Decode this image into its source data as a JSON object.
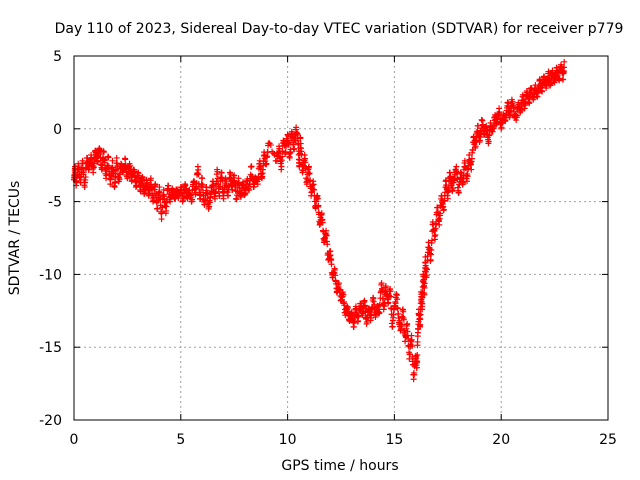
{
  "chart_data": {
    "type": "scatter",
    "title": "Day 110 of 2023, Sidereal Day-to-day VTEC variation (SDTVAR) for receiver p779",
    "xlabel": "GPS time / hours",
    "ylabel": "SDTVAR / TECUs",
    "xlim": [
      0,
      25
    ],
    "ylim": [
      -20,
      5
    ],
    "xticks": [
      0,
      5,
      10,
      15,
      20,
      25
    ],
    "yticks": [
      -20,
      -15,
      -10,
      -5,
      0,
      5
    ],
    "grid": true,
    "marker": "plus",
    "series": [
      {
        "color": "#ff0000",
        "points": [
          [
            0.0,
            -3.5
          ],
          [
            0.05,
            -2.6
          ],
          [
            0.1,
            -3.9
          ],
          [
            0.2,
            -2.4
          ],
          [
            0.3,
            -3.7
          ],
          [
            0.4,
            -2.2
          ],
          [
            0.5,
            -4.0
          ],
          [
            0.6,
            -2.0
          ],
          [
            0.7,
            -2.8
          ],
          [
            0.8,
            -1.8
          ],
          [
            0.9,
            -3.0
          ],
          [
            1.0,
            -1.5
          ],
          [
            1.1,
            -2.2
          ],
          [
            1.2,
            -1.4
          ],
          [
            1.3,
            -2.8
          ],
          [
            1.4,
            -1.6
          ],
          [
            1.5,
            -3.4
          ],
          [
            1.6,
            -1.9
          ],
          [
            1.7,
            -3.8
          ],
          [
            1.8,
            -2.2
          ],
          [
            1.9,
            -4.0
          ],
          [
            2.0,
            -2.0
          ],
          [
            2.1,
            -3.6
          ],
          [
            2.2,
            -2.4
          ],
          [
            2.3,
            -3.0
          ],
          [
            2.4,
            -2.1
          ],
          [
            2.5,
            -3.4
          ],
          [
            2.6,
            -2.4
          ],
          [
            2.7,
            -3.6
          ],
          [
            2.8,
            -2.8
          ],
          [
            2.9,
            -4.0
          ],
          [
            3.0,
            -3.0
          ],
          [
            3.1,
            -4.2
          ],
          [
            3.2,
            -3.3
          ],
          [
            3.3,
            -4.4
          ],
          [
            3.4,
            -3.5
          ],
          [
            3.5,
            -4.6
          ],
          [
            3.6,
            -3.4
          ],
          [
            3.7,
            -5.0
          ],
          [
            3.8,
            -3.8
          ],
          [
            3.9,
            -5.5
          ],
          [
            4.0,
            -4.0
          ],
          [
            4.1,
            -6.2
          ],
          [
            4.2,
            -4.2
          ],
          [
            4.3,
            -5.8
          ],
          [
            4.4,
            -3.9
          ],
          [
            4.5,
            -5.0
          ],
          [
            4.6,
            -4.1
          ],
          [
            4.7,
            -4.8
          ],
          [
            4.8,
            -4.3
          ],
          [
            4.9,
            -4.6
          ],
          [
            5.0,
            -4.0
          ],
          [
            5.1,
            -4.9
          ],
          [
            5.2,
            -3.8
          ],
          [
            5.3,
            -4.6
          ],
          [
            5.4,
            -4.2
          ],
          [
            5.5,
            -5.0
          ],
          [
            5.6,
            -3.6
          ],
          [
            5.7,
            -4.4
          ],
          [
            5.8,
            -2.6
          ],
          [
            5.9,
            -4.8
          ],
          [
            6.0,
            -3.4
          ],
          [
            6.1,
            -5.2
          ],
          [
            6.2,
            -4.0
          ],
          [
            6.3,
            -5.5
          ],
          [
            6.4,
            -4.5
          ],
          [
            6.5,
            -3.6
          ],
          [
            6.6,
            -4.8
          ],
          [
            6.7,
            -2.8
          ],
          [
            6.8,
            -4.6
          ],
          [
            6.9,
            -3.0
          ],
          [
            7.0,
            -4.8
          ],
          [
            7.1,
            -3.4
          ],
          [
            7.2,
            -4.6
          ],
          [
            7.3,
            -3.0
          ],
          [
            7.4,
            -4.2
          ],
          [
            7.5,
            -3.2
          ],
          [
            7.6,
            -4.8
          ],
          [
            7.7,
            -3.4
          ],
          [
            7.8,
            -4.6
          ],
          [
            7.9,
            -3.8
          ],
          [
            8.0,
            -4.4
          ],
          [
            8.1,
            -3.6
          ],
          [
            8.2,
            -4.2
          ],
          [
            8.3,
            -2.6
          ],
          [
            8.4,
            -4.0
          ],
          [
            8.5,
            -3.4
          ],
          [
            8.6,
            -3.8
          ],
          [
            8.7,
            -2.2
          ],
          [
            8.8,
            -3.4
          ],
          [
            8.9,
            -1.6
          ],
          [
            9.0,
            -2.4
          ],
          [
            9.1,
            -1.0
          ],
          [
            9.5,
            -2.2
          ],
          [
            9.6,
            -1.2
          ],
          [
            9.7,
            -2.8
          ],
          [
            9.8,
            -0.8
          ],
          [
            9.9,
            -1.6
          ],
          [
            10.0,
            -0.4
          ],
          [
            10.1,
            -2.0
          ],
          [
            10.2,
            -0.2
          ],
          [
            10.3,
            -1.4
          ],
          [
            10.4,
            0.1
          ],
          [
            10.5,
            -1.0
          ],
          [
            10.55,
            -2.6
          ],
          [
            10.6,
            -0.6
          ],
          [
            10.7,
            -3.0
          ],
          [
            10.8,
            -1.8
          ],
          [
            10.9,
            -3.8
          ],
          [
            11.0,
            -2.6
          ],
          [
            11.1,
            -4.6
          ],
          [
            11.2,
            -3.6
          ],
          [
            11.3,
            -5.4
          ],
          [
            11.4,
            -4.6
          ],
          [
            11.5,
            -6.6
          ],
          [
            11.6,
            -5.8
          ],
          [
            11.7,
            -7.8
          ],
          [
            11.8,
            -7.0
          ],
          [
            11.9,
            -9.0
          ],
          [
            12.0,
            -8.4
          ],
          [
            12.1,
            -10.2
          ],
          [
            12.2,
            -9.6
          ],
          [
            12.3,
            -11.2
          ],
          [
            12.4,
            -10.6
          ],
          [
            12.5,
            -11.8
          ],
          [
            12.6,
            -11.4
          ],
          [
            12.7,
            -12.8
          ],
          [
            12.8,
            -12.2
          ],
          [
            12.9,
            -13.2
          ],
          [
            13.0,
            -12.6
          ],
          [
            13.1,
            -13.6
          ],
          [
            13.2,
            -12.2
          ],
          [
            13.3,
            -13.2
          ],
          [
            13.4,
            -12.0
          ],
          [
            13.5,
            -12.8
          ],
          [
            13.6,
            -11.8
          ],
          [
            13.7,
            -13.4
          ],
          [
            13.8,
            -12.4
          ],
          [
            13.9,
            -13.0
          ],
          [
            14.0,
            -11.6
          ],
          [
            14.1,
            -12.8
          ],
          [
            14.2,
            -12.2
          ],
          [
            14.3,
            -12.6
          ],
          [
            14.4,
            -10.6
          ],
          [
            14.5,
            -12.4
          ],
          [
            14.6,
            -10.8
          ],
          [
            14.7,
            -12.0
          ],
          [
            14.8,
            -11.0
          ],
          [
            14.9,
            -13.6
          ],
          [
            15.0,
            -12.2
          ],
          [
            15.1,
            -11.4
          ],
          [
            15.2,
            -13.0
          ],
          [
            15.3,
            -13.8
          ],
          [
            15.4,
            -12.4
          ],
          [
            15.5,
            -14.6
          ],
          [
            15.6,
            -13.4
          ],
          [
            15.7,
            -15.8
          ],
          [
            15.8,
            -14.2
          ],
          [
            15.9,
            -17.2
          ],
          [
            16.0,
            -15.6
          ],
          [
            16.05,
            -16.4
          ],
          [
            16.1,
            -14.0
          ],
          [
            16.15,
            -12.4
          ],
          [
            16.2,
            -13.6
          ],
          [
            16.25,
            -11.2
          ],
          [
            16.3,
            -12.4
          ],
          [
            16.35,
            -10.0
          ],
          [
            16.4,
            -11.4
          ],
          [
            16.45,
            -8.8
          ],
          [
            16.5,
            -10.2
          ],
          [
            16.6,
            -7.8
          ],
          [
            16.7,
            -9.0
          ],
          [
            16.8,
            -6.4
          ],
          [
            16.9,
            -7.6
          ],
          [
            17.0,
            -5.4
          ],
          [
            17.1,
            -6.6
          ],
          [
            17.2,
            -4.6
          ],
          [
            17.3,
            -5.6
          ],
          [
            17.4,
            -3.6
          ],
          [
            17.5,
            -4.8
          ],
          [
            17.6,
            -3.0
          ],
          [
            17.7,
            -4.2
          ],
          [
            17.8,
            -3.4
          ],
          [
            17.9,
            -2.6
          ],
          [
            18.0,
            -4.4
          ],
          [
            18.1,
            -3.0
          ],
          [
            18.2,
            -3.8
          ],
          [
            18.3,
            -2.2
          ],
          [
            18.4,
            -3.6
          ],
          [
            18.5,
            -1.8
          ],
          [
            18.6,
            -2.8
          ],
          [
            18.7,
            -0.6
          ],
          [
            18.8,
            -1.2
          ],
          [
            18.9,
            0.2
          ],
          [
            19.0,
            -0.8
          ],
          [
            19.1,
            0.6
          ],
          [
            19.2,
            -0.4
          ],
          [
            19.3,
            0.2
          ],
          [
            19.4,
            -1.0
          ],
          [
            19.5,
            0.4
          ],
          [
            19.6,
            -0.2
          ],
          [
            19.7,
            0.8
          ],
          [
            19.8,
            0.4
          ],
          [
            19.9,
            1.4
          ],
          [
            20.0,
            0.0
          ],
          [
            20.1,
            1.0
          ],
          [
            20.2,
            0.6
          ],
          [
            20.3,
            1.8
          ],
          [
            20.4,
            0.8
          ],
          [
            20.5,
            2.0
          ],
          [
            20.6,
            1.2
          ],
          [
            20.7,
            0.6
          ],
          [
            20.8,
            1.8
          ],
          [
            20.9,
            1.2
          ],
          [
            21.0,
            2.2
          ],
          [
            21.1,
            1.4
          ],
          [
            21.2,
            2.6
          ],
          [
            21.3,
            1.8
          ],
          [
            21.4,
            2.8
          ],
          [
            21.5,
            2.0
          ],
          [
            21.6,
            3.0
          ],
          [
            21.7,
            2.2
          ],
          [
            21.8,
            3.4
          ],
          [
            21.9,
            2.6
          ],
          [
            22.0,
            3.6
          ],
          [
            22.1,
            2.8
          ],
          [
            22.2,
            3.8
          ],
          [
            22.3,
            3.0
          ],
          [
            22.4,
            4.0
          ],
          [
            22.5,
            3.2
          ],
          [
            22.6,
            4.2
          ],
          [
            22.7,
            3.4
          ],
          [
            22.8,
            4.4
          ],
          [
            22.9,
            3.4
          ],
          [
            22.95,
            4.6
          ]
        ]
      }
    ]
  }
}
